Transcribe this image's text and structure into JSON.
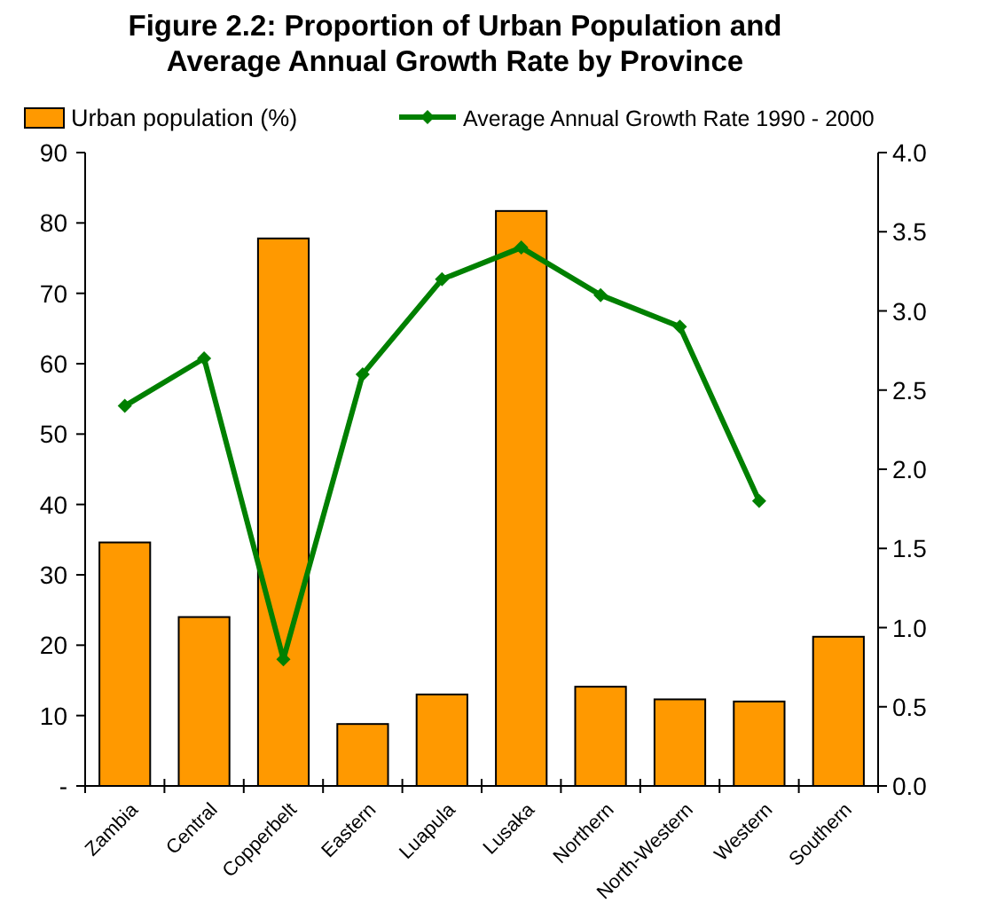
{
  "chart_data": {
    "type": "bar",
    "title": "Figure 2.2: Proportion of Urban Population and Average Annual Growth Rate by Province",
    "categories": [
      "Zambia",
      "Central",
      "Copperbelt",
      "Eastern",
      "Luapula",
      "Lusaka",
      "Northern",
      "North-Western",
      "Western",
      "Southern"
    ],
    "series": [
      {
        "name": "Urban population (%)",
        "color": "#ff9900",
        "values": [
          34.6,
          24.0,
          77.8,
          8.8,
          13.0,
          81.7,
          14.1,
          12.3,
          12.0,
          21.2
        ]
      },
      {
        "name": "Average Annual Growth Rate 1990 - 2000",
        "type": "line",
        "axis": "y2",
        "color": "#008000",
        "marker": "diamond",
        "values": [
          2.4,
          2.7,
          0.8,
          2.6,
          3.2,
          3.4,
          3.1,
          2.9,
          1.8,
          null
        ]
      }
    ],
    "ylim": [
      0,
      90
    ],
    "yticks": [
      {
        "value": 0,
        "label": "-"
      },
      10,
      20,
      30,
      40,
      50,
      60,
      70,
      80,
      90
    ],
    "y2lim": [
      0,
      4
    ],
    "y2ticks": [
      {
        "value": 0,
        "label": "0.0"
      },
      {
        "value": 0.5,
        "label": "0.5"
      },
      {
        "value": 1,
        "label": "1.0"
      },
      {
        "value": 1.5,
        "label": "1.5"
      },
      {
        "value": 2,
        "label": "2.0"
      },
      {
        "value": 2.5,
        "label": "2.5"
      },
      {
        "value": 3,
        "label": "3.0"
      },
      {
        "value": 3.5,
        "label": "3.5"
      },
      {
        "value": 4,
        "label": "4.0"
      }
    ],
    "legend": "top",
    "grid": false
  }
}
